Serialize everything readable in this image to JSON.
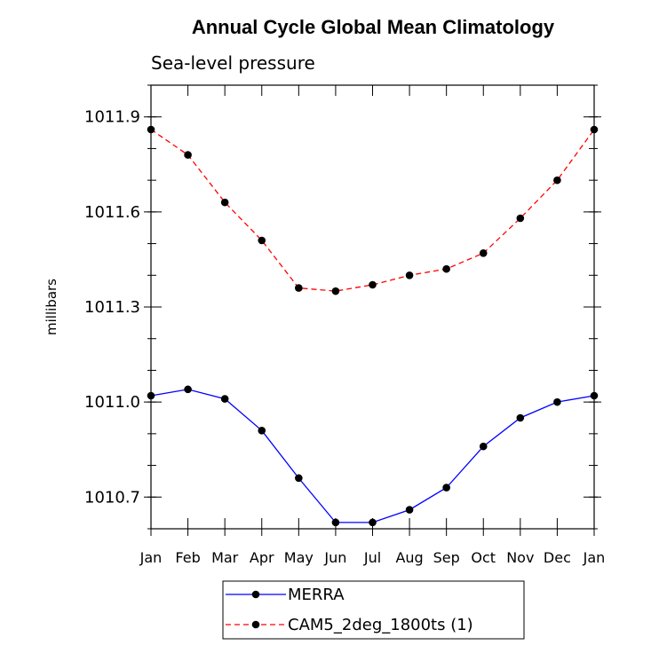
{
  "chart_data": {
    "type": "line",
    "title": "Annual Cycle Global Mean Climatology",
    "subtitle": "Sea-level pressure",
    "xlabel": "",
    "ylabel": "millibars",
    "categories": [
      "Jan",
      "Feb",
      "Mar",
      "Apr",
      "May",
      "Jun",
      "Jul",
      "Aug",
      "Sep",
      "Oct",
      "Nov",
      "Dec",
      "Jan"
    ],
    "yticks": [
      "1010.7",
      "1011.0",
      "1011.3",
      "1011.6",
      "1011.9"
    ],
    "ytick_values": [
      1010.7,
      1011.0,
      1011.3,
      1011.6,
      1011.9
    ],
    "ylim": [
      1010.6,
      1012.0
    ],
    "grid": false,
    "legend_position": "bottom",
    "series": [
      {
        "name": "MERRA",
        "color": "#0000ff",
        "dash": "solid",
        "values": [
          1011.02,
          1011.04,
          1011.01,
          1010.91,
          1010.76,
          1010.62,
          1010.62,
          1010.66,
          1010.73,
          1010.86,
          1010.95,
          1011.0,
          1011.02
        ]
      },
      {
        "name": "CAM5_2deg_1800ts (1)",
        "color": "#ff0000",
        "dash": "dashed",
        "values": [
          1011.86,
          1011.78,
          1011.63,
          1011.51,
          1011.36,
          1011.35,
          1011.37,
          1011.4,
          1011.42,
          1011.47,
          1011.58,
          1011.7,
          1011.86
        ]
      }
    ]
  }
}
